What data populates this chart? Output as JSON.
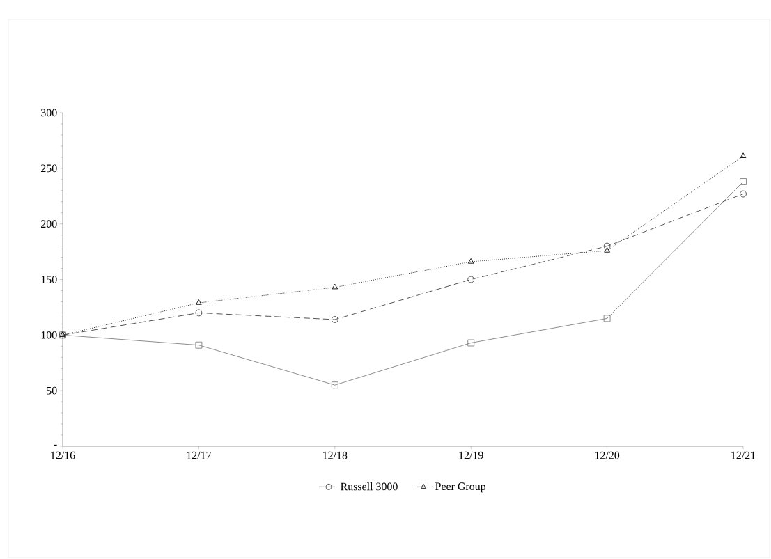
{
  "chart_data": {
    "type": "line",
    "categories": [
      "12/16",
      "12/17",
      "12/18",
      "12/19",
      "12/20",
      "12/21"
    ],
    "series": [
      {
        "color": "#808080",
        "marker": "square",
        "line_style": "solid",
        "values": [
          100,
          91,
          55,
          93,
          115,
          238
        ]
      },
      {
        "name": "Russell 3000",
        "color": "#404040",
        "marker": "circle",
        "line_style": "dashed",
        "values": [
          100,
          120,
          114,
          150,
          180,
          227
        ]
      },
      {
        "name": "Peer Group",
        "color": "#000000",
        "marker": "triangle",
        "line_style": "dotted",
        "values": [
          100,
          129,
          143,
          166,
          176,
          261
        ]
      }
    ],
    "ylim": [
      0,
      300
    ],
    "yticks": [
      {
        "value": 0,
        "label": "-"
      },
      50,
      100,
      150,
      200,
      250,
      300
    ],
    "grid": false,
    "legend": "bottom"
  }
}
